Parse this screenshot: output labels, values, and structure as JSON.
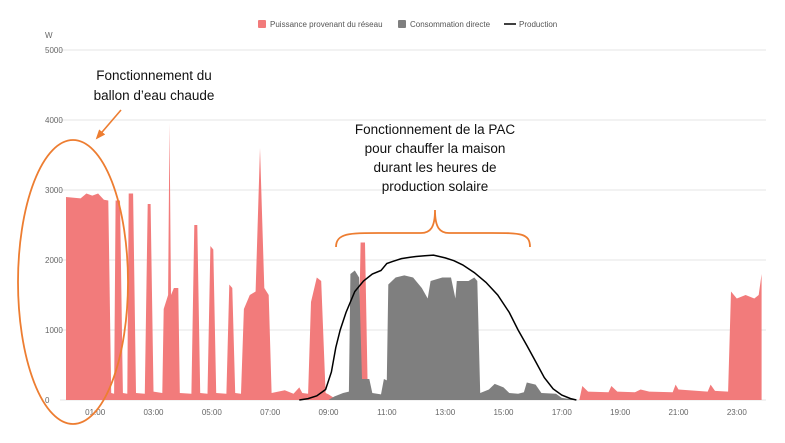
{
  "chart_data": {
    "type": "area",
    "unit_label": "W",
    "ylim": [
      0,
      5000
    ],
    "xlim_hours": [
      0,
      24
    ],
    "y_ticks": [
      "5000",
      "4000",
      "3000",
      "2000",
      "1000",
      "0"
    ],
    "x_ticks": [
      "01:00",
      "03:00",
      "05:00",
      "07:00",
      "09:00",
      "11:00",
      "13:00",
      "15:00",
      "17:00",
      "19:00",
      "21:00",
      "23:00"
    ],
    "legend": [
      "Puissance provenant du réseau",
      "Consommation directe",
      "Production"
    ],
    "colors": {
      "grid": "#e6e6e6",
      "axis_text": "#666666",
      "annotation": "#ED7D31",
      "text": "#111111"
    },
    "series": [
      {
        "name": "Puissance provenant du réseau",
        "kind": "area",
        "color": "#F27B7B",
        "points": [
          [
            0.0,
            2900
          ],
          [
            0.5,
            2880
          ],
          [
            0.7,
            2950
          ],
          [
            0.9,
            2920
          ],
          [
            1.1,
            2950
          ],
          [
            1.3,
            2860
          ],
          [
            1.45,
            2850
          ],
          [
            1.55,
            100
          ],
          [
            1.65,
            90
          ],
          [
            1.7,
            2850
          ],
          [
            1.85,
            2850
          ],
          [
            1.95,
            100
          ],
          [
            2.1,
            90
          ],
          [
            2.15,
            2950
          ],
          [
            2.3,
            2950
          ],
          [
            2.4,
            100
          ],
          [
            2.7,
            90
          ],
          [
            2.8,
            2800
          ],
          [
            2.9,
            2800
          ],
          [
            3.0,
            120
          ],
          [
            3.3,
            100
          ],
          [
            3.35,
            1300
          ],
          [
            3.5,
            1500
          ],
          [
            3.55,
            3950
          ],
          [
            3.6,
            1500
          ],
          [
            3.7,
            1600
          ],
          [
            3.85,
            1600
          ],
          [
            3.9,
            100
          ],
          [
            4.3,
            90
          ],
          [
            4.4,
            2500
          ],
          [
            4.5,
            2500
          ],
          [
            4.6,
            100
          ],
          [
            4.85,
            90
          ],
          [
            4.95,
            2200
          ],
          [
            5.05,
            2150
          ],
          [
            5.15,
            100
          ],
          [
            5.5,
            90
          ],
          [
            5.6,
            1650
          ],
          [
            5.7,
            1600
          ],
          [
            5.8,
            100
          ],
          [
            6.0,
            90
          ],
          [
            6.1,
            1300
          ],
          [
            6.3,
            1500
          ],
          [
            6.5,
            1550
          ],
          [
            6.65,
            3600
          ],
          [
            6.8,
            1600
          ],
          [
            6.95,
            1500
          ],
          [
            7.05,
            100
          ],
          [
            7.5,
            140
          ],
          [
            7.8,
            90
          ],
          [
            8.0,
            180
          ],
          [
            8.1,
            100
          ],
          [
            8.3,
            90
          ],
          [
            8.4,
            1400
          ],
          [
            8.6,
            1750
          ],
          [
            8.75,
            1700
          ],
          [
            8.9,
            100
          ],
          [
            9.0,
            80
          ],
          [
            9.3,
            0
          ],
          [
            10.0,
            0
          ],
          [
            10.1,
            2250
          ],
          [
            10.25,
            2250
          ],
          [
            10.35,
            0
          ],
          [
            17.6,
            0
          ],
          [
            17.7,
            200
          ],
          [
            17.9,
            120
          ],
          [
            18.6,
            110
          ],
          [
            18.7,
            200
          ],
          [
            18.9,
            120
          ],
          [
            19.5,
            110
          ],
          [
            19.7,
            150
          ],
          [
            20.0,
            120
          ],
          [
            20.8,
            110
          ],
          [
            20.9,
            220
          ],
          [
            21.0,
            150
          ],
          [
            22.0,
            120
          ],
          [
            22.1,
            220
          ],
          [
            22.25,
            130
          ],
          [
            22.7,
            120
          ],
          [
            22.8,
            1550
          ],
          [
            23.0,
            1450
          ],
          [
            23.3,
            1500
          ],
          [
            23.6,
            1450
          ],
          [
            23.75,
            1500
          ],
          [
            23.85,
            1800
          ]
        ]
      },
      {
        "name": "Consommation directe",
        "kind": "area",
        "color": "#7F7F7F",
        "points": [
          [
            9.0,
            0
          ],
          [
            9.2,
            50
          ],
          [
            9.5,
            100
          ],
          [
            9.7,
            120
          ],
          [
            9.75,
            1800
          ],
          [
            9.9,
            1850
          ],
          [
            10.05,
            1750
          ],
          [
            10.15,
            300
          ],
          [
            10.4,
            300
          ],
          [
            10.5,
            100
          ],
          [
            10.8,
            80
          ],
          [
            10.9,
            300
          ],
          [
            11.0,
            280
          ],
          [
            11.05,
            1650
          ],
          [
            11.3,
            1750
          ],
          [
            11.6,
            1780
          ],
          [
            11.9,
            1750
          ],
          [
            12.2,
            1600
          ],
          [
            12.4,
            1450
          ],
          [
            12.5,
            1700
          ],
          [
            12.9,
            1750
          ],
          [
            13.2,
            1750
          ],
          [
            13.35,
            1450
          ],
          [
            13.4,
            1700
          ],
          [
            13.8,
            1700
          ],
          [
            14.0,
            1750
          ],
          [
            14.1,
            1700
          ],
          [
            14.2,
            100
          ],
          [
            14.5,
            150
          ],
          [
            14.7,
            230
          ],
          [
            15.0,
            180
          ],
          [
            15.2,
            100
          ],
          [
            15.5,
            90
          ],
          [
            15.7,
            110
          ],
          [
            15.8,
            250
          ],
          [
            16.1,
            220
          ],
          [
            16.3,
            100
          ],
          [
            16.8,
            90
          ],
          [
            17.0,
            30
          ],
          [
            17.5,
            0
          ]
        ]
      },
      {
        "name": "Production",
        "kind": "line",
        "color": "#000000",
        "points": [
          [
            8.0,
            0
          ],
          [
            8.3,
            20
          ],
          [
            8.6,
            60
          ],
          [
            8.9,
            150
          ],
          [
            9.1,
            400
          ],
          [
            9.25,
            750
          ],
          [
            9.4,
            1000
          ],
          [
            9.6,
            1250
          ],
          [
            9.9,
            1550
          ],
          [
            10.2,
            1700
          ],
          [
            10.5,
            1800
          ],
          [
            10.8,
            1850
          ],
          [
            11.0,
            1950
          ],
          [
            11.2,
            1980
          ],
          [
            11.5,
            2020
          ],
          [
            11.8,
            2040
          ],
          [
            12.0,
            2050
          ],
          [
            12.3,
            2060
          ],
          [
            12.6,
            2070
          ],
          [
            13.0,
            2030
          ],
          [
            13.3,
            1990
          ],
          [
            13.6,
            1930
          ],
          [
            14.0,
            1820
          ],
          [
            14.4,
            1680
          ],
          [
            14.8,
            1500
          ],
          [
            15.2,
            1250
          ],
          [
            15.5,
            1000
          ],
          [
            15.8,
            780
          ],
          [
            16.1,
            550
          ],
          [
            16.4,
            320
          ],
          [
            16.7,
            160
          ],
          [
            17.0,
            70
          ],
          [
            17.3,
            20
          ],
          [
            17.5,
            0
          ]
        ]
      }
    ],
    "annotations": [
      {
        "lines": [
          "Fonctionnement du",
          "ballon d’eau chaude"
        ]
      },
      {
        "lines": [
          "Fonctionnement de la PAC",
          "pour chauffer la maison",
          "durant les heures de",
          "production solaire"
        ]
      }
    ]
  }
}
